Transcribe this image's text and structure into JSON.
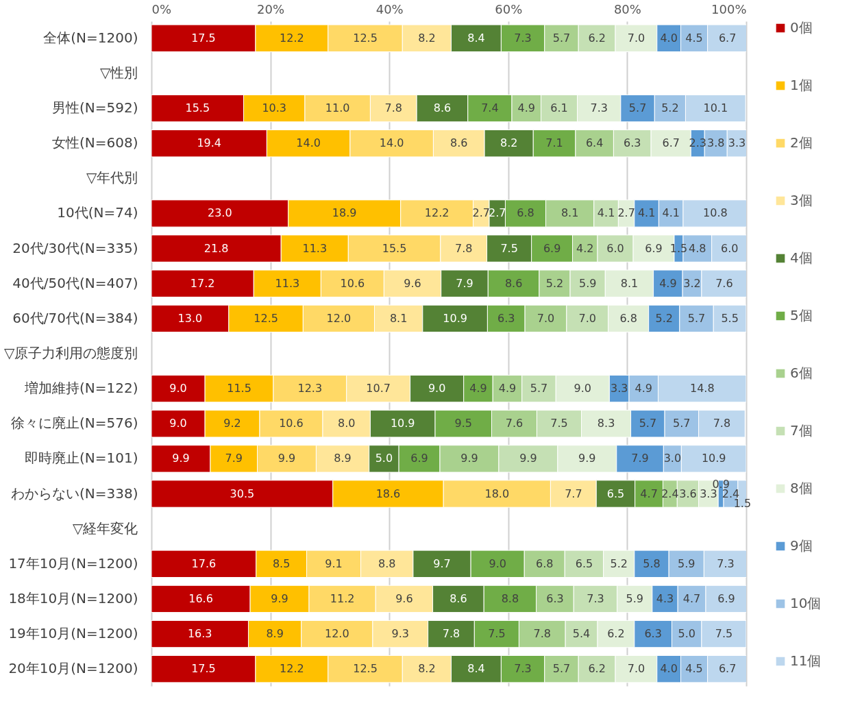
{
  "chart_data": {
    "type": "bar",
    "orientation": "horizontal",
    "stacked": true,
    "grid": "x",
    "legend": "right",
    "categories": [
      "全体(N=1200)",
      "▽性別",
      "男性(N=592)",
      "女性(N=608)",
      "▽年代別",
      "10代(N=74)",
      "20代/30代(N=335)",
      "40代/50代(N=407)",
      "60代/70代(N=384)",
      "▽原子力利用の態度別",
      "増加維持(N=122)",
      "徐々に廃止(N=576)",
      "即時廃止(N=101)",
      "わからない(N=338)",
      "▽経年変化",
      "17年10月(N=1200)",
      "18年10月(N=1200)",
      "19年10月(N=1200)",
      "20年10月(N=1200)"
    ],
    "xlim": [
      0,
      100
    ],
    "xticks": [
      {
        "value": 0,
        "label": "0%"
      },
      {
        "value": 20,
        "label": "20%"
      },
      {
        "value": 40,
        "label": "40%"
      },
      {
        "value": 60,
        "label": "60%"
      },
      {
        "value": 80,
        "label": "80%"
      },
      {
        "value": 100,
        "label": "100%"
      }
    ],
    "series": [
      {
        "name": "0個",
        "color": "#c00000",
        "values": [
          17.5,
          null,
          15.5,
          19.4,
          null,
          23.0,
          21.8,
          17.2,
          13.0,
          null,
          9.0,
          9.0,
          9.9,
          30.5,
          null,
          17.6,
          16.6,
          16.3,
          17.5
        ],
        "value_labels": [
          "17.5",
          null,
          "15.5",
          "19.4",
          null,
          "23.0",
          "21.8",
          "17.2",
          "13.0",
          null,
          "9.0",
          "9.0",
          "9.9",
          "30.5",
          null,
          "17.6",
          "16.6",
          "16.3",
          "17.5"
        ]
      },
      {
        "name": "1個",
        "color": "#ffc000",
        "values": [
          12.2,
          null,
          10.3,
          14.0,
          null,
          18.9,
          11.3,
          11.3,
          12.5,
          null,
          11.5,
          9.2,
          7.9,
          18.6,
          null,
          8.5,
          9.9,
          8.9,
          12.2
        ],
        "value_labels": [
          "12.2",
          null,
          "10.3",
          "14.0",
          null,
          "18.9",
          "11.3",
          "11.3",
          "12.5",
          null,
          "11.5",
          "9.2",
          "7.9",
          "18.6",
          null,
          "8.5",
          "9.9",
          "8.9",
          "12.2"
        ]
      },
      {
        "name": "2個",
        "color": "#ffd966",
        "values": [
          12.5,
          null,
          11.0,
          14.0,
          null,
          12.2,
          15.5,
          10.6,
          12.0,
          null,
          12.3,
          10.6,
          9.9,
          18.0,
          null,
          9.1,
          11.2,
          12.0,
          12.5
        ],
        "value_labels": [
          "12.5",
          null,
          "11.0",
          "14.0",
          null,
          "12.2",
          "15.5",
          "10.6",
          "12.0",
          null,
          "12.3",
          "10.6",
          "9.9",
          "18.0",
          null,
          "9.1",
          "11.2",
          "12.0",
          "12.5"
        ]
      },
      {
        "name": "3個",
        "color": "#ffe699",
        "values": [
          8.2,
          null,
          7.8,
          8.6,
          null,
          2.7,
          7.8,
          9.6,
          8.1,
          null,
          10.7,
          8.0,
          8.9,
          7.7,
          null,
          8.8,
          9.6,
          9.3,
          8.2
        ],
        "value_labels": [
          "8.2",
          null,
          "7.8",
          "8.6",
          null,
          "2.7",
          "7.8",
          "9.6",
          "8.1",
          null,
          "10.7",
          "8.0",
          "8.9",
          "7.7",
          null,
          "8.8",
          "9.6",
          "9.3",
          "8.2"
        ]
      },
      {
        "name": "4個",
        "color": "#548235",
        "values": [
          8.4,
          null,
          8.6,
          8.2,
          null,
          2.7,
          7.5,
          7.9,
          10.9,
          null,
          9.0,
          10.9,
          5.0,
          6.5,
          null,
          9.7,
          8.6,
          7.8,
          8.4
        ],
        "value_labels": [
          "8.4",
          null,
          "8.6",
          "8.2",
          null,
          "2.7",
          "7.5",
          "7.9",
          "10.9",
          null,
          "9.0",
          "10.9",
          "5.0",
          "6.5",
          null,
          "9.7",
          "8.6",
          "7.8",
          "8.4"
        ]
      },
      {
        "name": "5個",
        "color": "#70ad47",
        "values": [
          7.3,
          null,
          7.4,
          7.1,
          null,
          6.8,
          6.9,
          8.6,
          6.3,
          null,
          4.9,
          9.5,
          6.9,
          4.7,
          null,
          9.0,
          8.8,
          7.5,
          7.3
        ],
        "value_labels": [
          "7.3",
          null,
          "7.4",
          "7.1",
          null,
          "6.8",
          "6.9",
          "8.6",
          "6.3",
          null,
          "4.9",
          "9.5",
          "6.9",
          "4.7",
          null,
          "9.0",
          "8.8",
          "7.5",
          "7.3"
        ]
      },
      {
        "name": "6個",
        "color": "#a9d18e",
        "values": [
          5.7,
          null,
          4.9,
          6.4,
          null,
          8.1,
          4.2,
          5.2,
          7.0,
          null,
          4.9,
          7.6,
          9.9,
          2.4,
          null,
          6.8,
          6.3,
          7.8,
          5.7
        ],
        "value_labels": [
          "5.7",
          null,
          "4.9",
          "6.4",
          null,
          "8.1",
          "4.2",
          "5.2",
          "7.0",
          null,
          "4.9",
          "7.6",
          "9.9",
          "2.4",
          null,
          "6.8",
          "6.3",
          "7.8",
          "5.7"
        ]
      },
      {
        "name": "7個",
        "color": "#c5e0b4",
        "values": [
          6.2,
          null,
          6.1,
          6.3,
          null,
          4.1,
          6.0,
          5.9,
          7.0,
          null,
          5.7,
          7.5,
          9.9,
          3.6,
          null,
          6.5,
          7.3,
          5.4,
          6.2
        ],
        "value_labels": [
          "6.2",
          null,
          "6.1",
          "6.3",
          null,
          "4.1",
          "6.0",
          "5.9",
          "7.0",
          null,
          "5.7",
          "7.5",
          "9.9",
          "3.6",
          null,
          "6.5",
          "7.3",
          "5.4",
          "6.2"
        ]
      },
      {
        "name": "8個",
        "color": "#e2f0d9",
        "values": [
          7.0,
          null,
          7.3,
          6.7,
          null,
          2.7,
          6.9,
          8.1,
          6.8,
          null,
          9.0,
          8.3,
          9.9,
          3.3,
          null,
          5.2,
          5.9,
          6.2,
          7.0
        ],
        "value_labels": [
          "7.0",
          null,
          "7.3",
          "6.7",
          null,
          "2.7",
          "6.9",
          "8.1",
          "6.8",
          null,
          "9.0",
          "8.3",
          "9.9",
          "3.3",
          null,
          "5.2",
          "5.9",
          "6.2",
          "7.0"
        ]
      },
      {
        "name": "9個",
        "color": "#5b9bd5",
        "values": [
          4.0,
          null,
          5.7,
          2.3,
          null,
          4.1,
          1.5,
          4.9,
          5.2,
          null,
          3.3,
          5.7,
          7.9,
          0.9,
          null,
          5.8,
          4.3,
          6.3,
          4.0
        ],
        "value_labels": [
          "4.0",
          null,
          "5.7",
          "2.3",
          null,
          "4.1",
          "1.5",
          "4.9",
          "5.2",
          null,
          "3.3",
          "5.7",
          "7.9",
          "0.9",
          null,
          "5.8",
          "4.3",
          "6.3",
          "4.0"
        ]
      },
      {
        "name": "10個",
        "color": "#9dc3e6",
        "values": [
          4.5,
          null,
          5.2,
          3.8,
          null,
          4.1,
          4.8,
          3.2,
          5.7,
          null,
          4.9,
          5.7,
          3.0,
          2.4,
          null,
          5.9,
          4.7,
          5.0,
          4.5
        ],
        "value_labels": [
          "4.5",
          null,
          "5.2",
          "3.8",
          null,
          "4.1",
          "4.8",
          "3.2",
          "5.7",
          null,
          "4.9",
          "5.7",
          "3.0",
          "2.4",
          null,
          "5.9",
          "4.7",
          "5.0",
          "4.5"
        ]
      },
      {
        "name": "11個",
        "color": "#bdd7ee",
        "values": [
          6.7,
          null,
          10.1,
          3.3,
          null,
          10.8,
          6.0,
          7.6,
          5.5,
          null,
          14.8,
          7.8,
          10.9,
          1.5,
          null,
          7.3,
          6.9,
          7.5,
          6.7
        ],
        "value_labels": [
          "6.7",
          null,
          "10.1",
          "3.3",
          null,
          "10.8",
          "6.0",
          "7.6",
          "5.5",
          null,
          "14.8",
          "7.8",
          "10.9",
          "1.5",
          null,
          "7.3",
          "6.9",
          "7.5",
          "6.7"
        ]
      }
    ]
  }
}
